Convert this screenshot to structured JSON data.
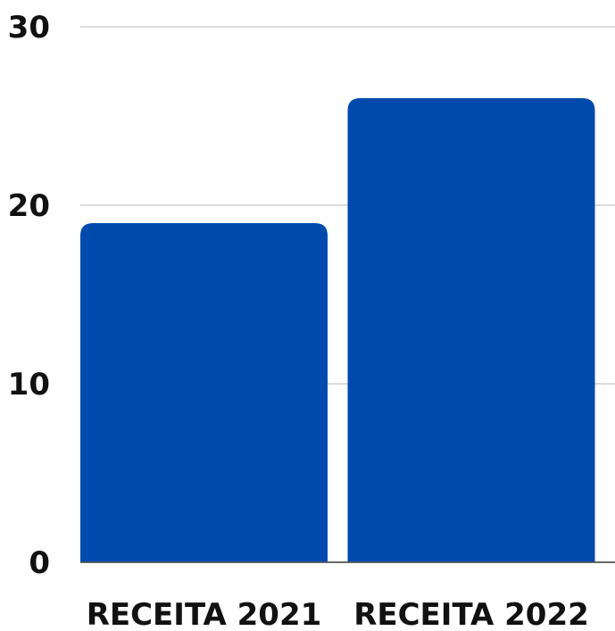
{
  "chart_data": {
    "type": "bar",
    "title": "",
    "xlabel": "",
    "ylabel": "",
    "categories": [
      "RECEITA 2021",
      "RECEITA 2022"
    ],
    "values": [
      19,
      26
    ],
    "ylim": [
      0,
      30
    ],
    "yticks": [
      0,
      10,
      20,
      30
    ],
    "grid": true,
    "legend": "none",
    "colors": {
      "bar": "#004AAD",
      "gridline": "#CFCFCF",
      "text": "#111111"
    }
  }
}
